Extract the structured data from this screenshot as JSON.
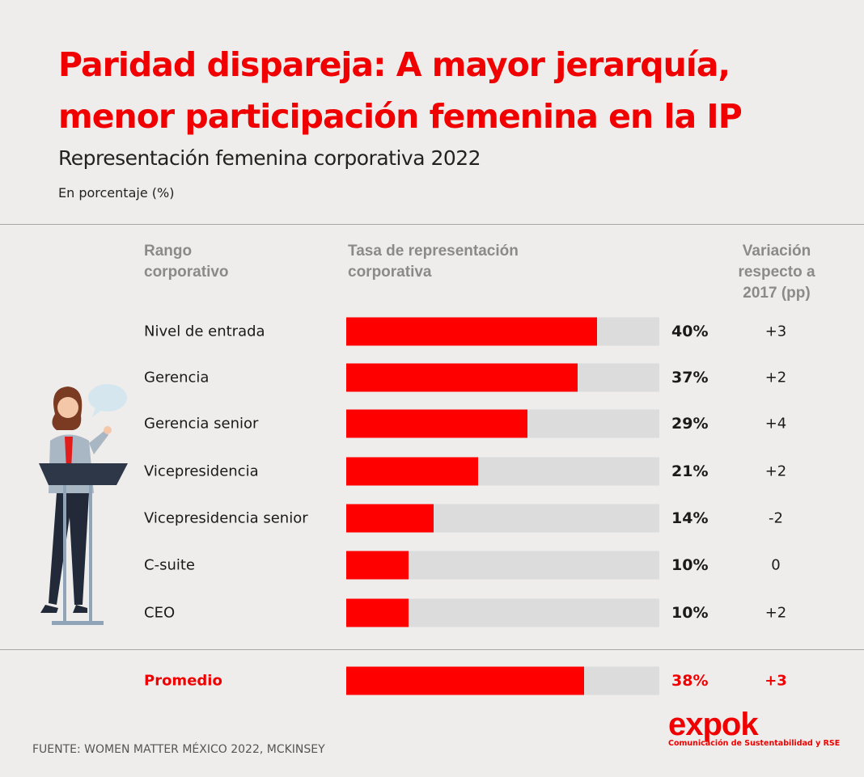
{
  "header": {
    "title_line1": "Paridad dispareja: A mayor jerarquía,",
    "title_line2": "menor participación femenina en la IP",
    "subtitle": "Representación femenina corporativa 2022",
    "unit": "En porcentaje (%)"
  },
  "columns": {
    "rank_line1": "Rango",
    "rank_line2": "corporativo",
    "rate_line1": "Tasa de representación",
    "rate_line2": "corporativa",
    "var_line1": "Variación",
    "var_line2": "respecto a",
    "var_line3": "2017 (pp)"
  },
  "chart_data": {
    "type": "bar",
    "orientation": "horizontal",
    "title": "Representación femenina corporativa 2022",
    "categories": [
      "Nivel de entrada",
      "Gerencia",
      "Gerencia senior",
      "Vicepresidencia",
      "Vicepresidencia senior",
      "C-suite",
      "CEO"
    ],
    "values": [
      40,
      37,
      29,
      21,
      14,
      10,
      10
    ],
    "value_labels": [
      "40%",
      "37%",
      "29%",
      "21%",
      "14%",
      "10%",
      "10%"
    ],
    "variation": [
      "+3",
      "+2",
      "+4",
      "+2",
      "-2",
      "0",
      "+2"
    ],
    "average": {
      "label": "Promedio",
      "value": 38,
      "value_label": "38%",
      "variation": "+3"
    },
    "xlim": [
      0,
      50
    ],
    "grid": false,
    "colors": {
      "bar": "#ff0000",
      "track": "#dcdcdc",
      "accent": "#f00000"
    }
  },
  "footer": {
    "source": "FUENTE: WOMEN MATTER MÉXICO 2022, MCKINSEY",
    "logo_word": "expok",
    "logo_tagline": "Comunicación de Sustentabilidad y RSE"
  }
}
